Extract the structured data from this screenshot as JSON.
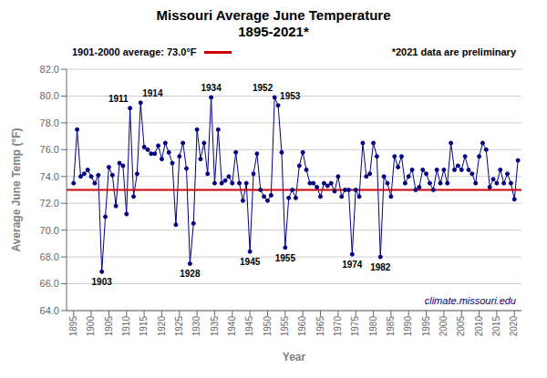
{
  "chart_data": {
    "type": "line",
    "title": "Missouri Average June Temperature",
    "subtitle": "1895-2021*",
    "x_label": "Year",
    "y_label": "Average June Temp (°F)",
    "x": [
      1895,
      1896,
      1897,
      1898,
      1899,
      1900,
      1901,
      1902,
      1903,
      1904,
      1905,
      1906,
      1907,
      1908,
      1909,
      1910,
      1911,
      1912,
      1913,
      1914,
      1915,
      1916,
      1917,
      1918,
      1919,
      1920,
      1921,
      1922,
      1923,
      1924,
      1925,
      1926,
      1927,
      1928,
      1929,
      1930,
      1931,
      1932,
      1933,
      1934,
      1935,
      1936,
      1937,
      1938,
      1939,
      1940,
      1941,
      1942,
      1943,
      1944,
      1945,
      1946,
      1947,
      1948,
      1949,
      1950,
      1951,
      1952,
      1953,
      1954,
      1955,
      1956,
      1957,
      1958,
      1959,
      1960,
      1961,
      1962,
      1963,
      1964,
      1965,
      1966,
      1967,
      1968,
      1969,
      1970,
      1971,
      1972,
      1973,
      1974,
      1975,
      1976,
      1977,
      1978,
      1979,
      1980,
      1981,
      1982,
      1983,
      1984,
      1985,
      1986,
      1987,
      1988,
      1989,
      1990,
      1991,
      1992,
      1993,
      1994,
      1995,
      1996,
      1997,
      1998,
      1999,
      2000,
      2001,
      2002,
      2003,
      2004,
      2005,
      2006,
      2007,
      2008,
      2009,
      2010,
      2011,
      2012,
      2013,
      2014,
      2015,
      2016,
      2017,
      2018,
      2019,
      2020,
      2021
    ],
    "values": [
      73.5,
      77.5,
      74.0,
      74.2,
      74.5,
      74.0,
      73.5,
      74.1,
      66.9,
      71.0,
      74.7,
      74.1,
      71.8,
      75.0,
      74.8,
      71.2,
      79.1,
      72.5,
      74.2,
      79.5,
      76.2,
      76.0,
      75.7,
      75.7,
      76.3,
      75.3,
      76.5,
      75.8,
      75.0,
      70.4,
      75.5,
      76.5,
      74.6,
      67.5,
      70.5,
      77.5,
      75.3,
      76.5,
      74.2,
      79.9,
      73.5,
      77.5,
      73.5,
      73.7,
      74.0,
      73.5,
      75.8,
      73.5,
      72.2,
      73.5,
      68.4,
      74.2,
      75.7,
      73.0,
      72.5,
      72.2,
      72.6,
      79.9,
      79.3,
      75.8,
      68.7,
      72.4,
      73.0,
      72.4,
      74.8,
      75.8,
      74.5,
      73.5,
      73.5,
      73.2,
      72.5,
      73.5,
      73.3,
      73.5,
      72.9,
      74.0,
      72.5,
      73.0,
      73.0,
      68.2,
      73.0,
      72.5,
      76.5,
      74.0,
      74.2,
      76.5,
      75.5,
      68.0,
      74.0,
      73.5,
      72.5,
      75.5,
      74.7,
      75.5,
      73.5,
      74.0,
      74.5,
      73.0,
      73.2,
      74.5,
      74.2,
      73.5,
      73.0,
      74.5,
      73.5,
      74.5,
      73.5,
      76.5,
      74.5,
      74.8,
      74.5,
      75.5,
      74.5,
      74.2,
      73.5,
      75.5,
      76.5,
      76.0,
      73.2,
      73.8,
      73.5,
      74.5,
      73.5,
      74.2,
      73.5,
      72.3,
      75.2
    ],
    "color": "#000080",
    "marker": "circle",
    "xlim": [
      1893,
      2022
    ],
    "xticks": [
      1895,
      1900,
      1905,
      1910,
      1915,
      1920,
      1925,
      1930,
      1935,
      1940,
      1945,
      1950,
      1955,
      1960,
      1965,
      1970,
      1975,
      1980,
      1985,
      1990,
      1995,
      2000,
      2005,
      2010,
      2015,
      2020
    ],
    "ylim": [
      64.0,
      82.0
    ],
    "yticks": [
      {
        "value": 64.0,
        "label": "64.0"
      },
      {
        "value": 66.0,
        "label": "66.0"
      },
      {
        "value": 68.0,
        "label": "68.0"
      },
      {
        "value": 70.0,
        "label": "70.0"
      },
      {
        "value": 72.0,
        "label": "72.0"
      },
      {
        "value": 74.0,
        "label": "74.0"
      },
      {
        "value": 76.0,
        "label": "76.0"
      },
      {
        "value": 78.0,
        "label": "78.0"
      },
      {
        "value": 80.0,
        "label": "80.0"
      },
      {
        "value": 82.0,
        "label": "82.0"
      }
    ],
    "grid": true,
    "reference_line": {
      "value": 73.0,
      "label": "1901-2000 average: 73.0°F",
      "color": "#CC0000"
    },
    "note": "*2021 data are preliminary",
    "watermark": "climate.missouri.edu",
    "annotations": [
      {
        "x": 1903,
        "y": 66.9,
        "label": "1903"
      },
      {
        "x": 1911,
        "y": 79.1,
        "label": "1911"
      },
      {
        "x": 1914,
        "y": 79.5,
        "label": "1914"
      },
      {
        "x": 1928,
        "y": 67.5,
        "label": "1928"
      },
      {
        "x": 1934,
        "y": 79.9,
        "label": "1934"
      },
      {
        "x": 1945,
        "y": 68.4,
        "label": "1945"
      },
      {
        "x": 1952,
        "y": 79.9,
        "label": "1952"
      },
      {
        "x": 1953,
        "y": 79.3,
        "label": "1953"
      },
      {
        "x": 1955,
        "y": 68.7,
        "label": "1955"
      },
      {
        "x": 1974,
        "y": 68.2,
        "label": "1974"
      },
      {
        "x": 1982,
        "y": 68.0,
        "label": "1982"
      }
    ]
  }
}
